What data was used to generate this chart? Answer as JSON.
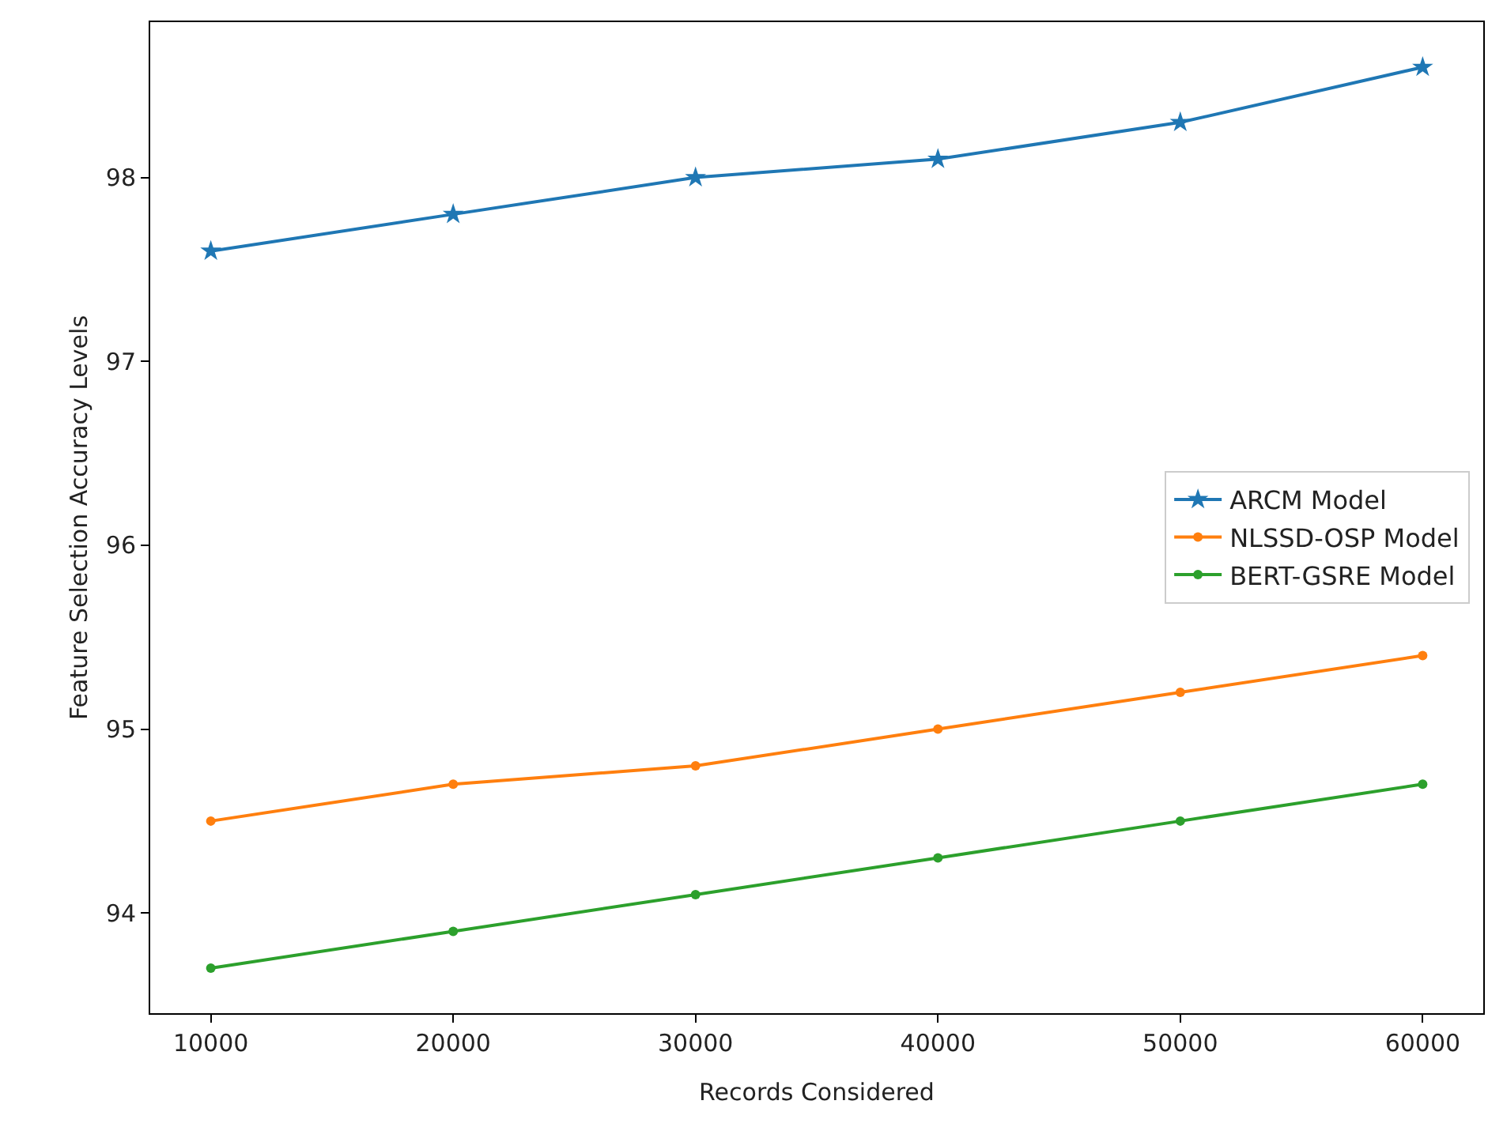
{
  "chart_data": {
    "type": "line",
    "xlabel": "Records Considered",
    "ylabel": "Feature Selection Accuracy Levels",
    "x": [
      10000,
      20000,
      30000,
      40000,
      50000,
      60000
    ],
    "series": [
      {
        "name": "ARCM Model",
        "color": "#1f77b4",
        "marker": "star",
        "values": [
          97.6,
          97.8,
          98.0,
          98.1,
          98.3,
          98.6
        ]
      },
      {
        "name": "NLSSD-OSP Model",
        "color": "#ff7f0e",
        "marker": "circle",
        "values": [
          94.5,
          94.7,
          94.8,
          95.0,
          95.2,
          95.4
        ]
      },
      {
        "name": "BERT-GSRE Model",
        "color": "#2ca02c",
        "marker": "circle",
        "values": [
          93.7,
          93.9,
          94.1,
          94.3,
          94.5,
          94.7
        ]
      }
    ],
    "xlim": [
      7500,
      62500
    ],
    "xticks": [
      10000,
      20000,
      30000,
      40000,
      50000,
      60000
    ],
    "ylim": [
      93.455,
      98.845
    ],
    "yticks": [
      94,
      95,
      96,
      97,
      98
    ],
    "grid": false,
    "legend": "right",
    "line_style": "solid"
  }
}
